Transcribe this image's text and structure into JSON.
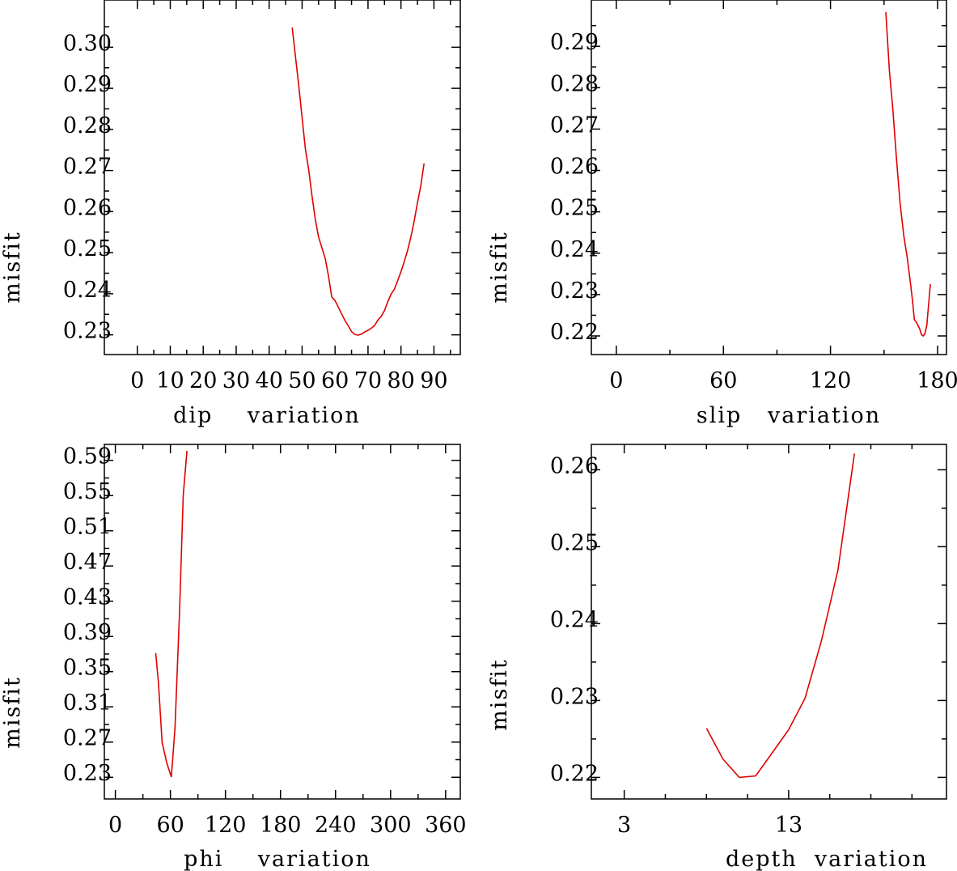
{
  "chart_data": [
    {
      "type": "line",
      "id": "dip",
      "title": "",
      "xlabel": "dip    variation",
      "ylabel": "misfit",
      "xlim": [
        -10,
        98
      ],
      "ylim": [
        0.2252,
        0.3115
      ],
      "xticks": [
        0,
        10,
        20,
        30,
        40,
        50,
        60,
        70,
        80,
        90
      ],
      "xtick_labels": [
        "0",
        "10",
        "20",
        "30",
        "40",
        "50",
        "60",
        "70",
        "80",
        "90"
      ],
      "xminor": [
        5,
        15,
        25,
        35,
        45,
        55,
        65,
        75,
        85,
        95
      ],
      "yticks": [
        0.23,
        0.24,
        0.25,
        0.26,
        0.27,
        0.28,
        0.29,
        0.3
      ],
      "ytick_labels": [
        "0.23",
        "0.24",
        "0.25",
        "0.26",
        "0.27",
        "0.28",
        "0.29",
        "0.30"
      ],
      "yminor": [
        0.235,
        0.245,
        0.255,
        0.265,
        0.275,
        0.285,
        0.295,
        0.305
      ],
      "series": [
        {
          "name": "misfit",
          "color": "#e00000",
          "x": [
            47,
            49,
            51,
            52,
            53,
            54,
            55,
            56,
            57,
            58,
            59,
            60,
            61,
            62,
            63,
            64,
            65,
            66,
            67,
            68,
            69,
            70,
            71,
            72,
            73,
            74,
            75,
            76,
            77,
            78,
            79,
            80,
            81,
            82,
            83,
            84,
            85,
            86,
            87
          ],
          "y": [
            0.3048,
            0.2905,
            0.2752,
            0.2702,
            0.2638,
            0.2582,
            0.2538,
            0.2512,
            0.2486,
            0.2444,
            0.2392,
            0.2383,
            0.2367,
            0.2351,
            0.2335,
            0.2322,
            0.2308,
            0.2301,
            0.2299,
            0.2302,
            0.2307,
            0.2311,
            0.2316,
            0.2323,
            0.2336,
            0.2345,
            0.2359,
            0.2381,
            0.2399,
            0.2411,
            0.2432,
            0.2454,
            0.2478,
            0.2505,
            0.2538,
            0.2577,
            0.2621,
            0.2662,
            0.2717
          ]
        }
      ]
    },
    {
      "type": "line",
      "id": "slip",
      "title": "",
      "xlabel": "slip   variation",
      "ylabel": "misfit",
      "xlim": [
        -14,
        185
      ],
      "ylim": [
        0.2155,
        0.3012
      ],
      "xticks": [
        0,
        60,
        120,
        180
      ],
      "xtick_labels": [
        "0",
        "60",
        "120",
        "180"
      ],
      "xminor": [
        30,
        90,
        150
      ],
      "yticks": [
        0.22,
        0.23,
        0.24,
        0.25,
        0.26,
        0.27,
        0.28,
        0.29
      ],
      "ytick_labels": [
        "0.22",
        "0.23",
        "0.24",
        "0.25",
        "0.26",
        "0.27",
        "0.28",
        "0.29"
      ],
      "yminor": [
        0.215,
        0.225,
        0.235,
        0.245,
        0.255,
        0.265,
        0.275,
        0.285,
        0.295
      ],
      "series": [
        {
          "name": "misfit",
          "color": "#e00000",
          "x": [
            151,
            153,
            155,
            157,
            159,
            161,
            163,
            165,
            166,
            167,
            168,
            169,
            170,
            171,
            172,
            173,
            174,
            175,
            176
          ],
          "y": [
            0.2983,
            0.2842,
            0.2745,
            0.2628,
            0.2522,
            0.2444,
            0.2389,
            0.2321,
            0.2283,
            0.2239,
            0.2234,
            0.2226,
            0.2217,
            0.2203,
            0.22,
            0.2206,
            0.2226,
            0.2276,
            0.2325
          ]
        }
      ]
    },
    {
      "type": "line",
      "id": "phi",
      "title": "",
      "xlabel": "phi    variation",
      "ylabel": "misfit",
      "xlim": [
        -12,
        376
      ],
      "ylim": [
        0.2054,
        0.6081
      ],
      "xticks": [
        0,
        60,
        120,
        180,
        240,
        300,
        360
      ],
      "xtick_labels": [
        "0",
        "60",
        "120",
        "180",
        "240",
        "300",
        "360"
      ],
      "xminor": [
        30,
        90,
        150,
        210,
        270,
        330
      ],
      "yticks": [
        0.23,
        0.27,
        0.31,
        0.35,
        0.39,
        0.43,
        0.47,
        0.51,
        0.55,
        0.59
      ],
      "ytick_labels": [
        "0.23",
        "0.27",
        "0.31",
        "0.35",
        "0.39",
        "0.43",
        "0.47",
        "0.51",
        "0.55",
        "0.59"
      ],
      "yminor": [
        0.25,
        0.29,
        0.33,
        0.37,
        0.41,
        0.45,
        0.49,
        0.53,
        0.57
      ],
      "series": [
        {
          "name": "misfit",
          "color": "#e00000",
          "x": [
            44,
            47,
            51,
            56,
            61,
            65,
            70,
            74,
            78
          ],
          "y": [
            0.3711,
            0.3369,
            0.2697,
            0.2465,
            0.2303,
            0.2858,
            0.4192,
            0.5503,
            0.6007
          ]
        }
      ]
    },
    {
      "type": "line",
      "id": "depth",
      "title": "",
      "xlabel": "depth  variation",
      "ylabel": "misfit",
      "xlim": [
        1,
        22.6
      ],
      "ylim": [
        0.2172,
        0.2633
      ],
      "xticks": [
        3,
        13
      ],
      "xtick_labels": [
        "3",
        "13"
      ],
      "xminor": [
        5.5,
        8,
        10.5,
        15.5,
        18,
        20.5
      ],
      "yticks": [
        0.22,
        0.23,
        0.24,
        0.25,
        0.26
      ],
      "ytick_labels": [
        "0.22",
        "0.23",
        "0.24",
        "0.25",
        "0.26"
      ],
      "yminor": [
        0.225,
        0.235,
        0.245,
        0.255
      ],
      "series": [
        {
          "name": "misfit",
          "color": "#e00000",
          "x": [
            8,
            9,
            10,
            11,
            12,
            13,
            14,
            15,
            16,
            17
          ],
          "y": [
            0.2264,
            0.2224,
            0.22,
            0.2202,
            0.2232,
            0.2262,
            0.2303,
            0.2378,
            0.247,
            0.2621
          ]
        }
      ]
    }
  ]
}
